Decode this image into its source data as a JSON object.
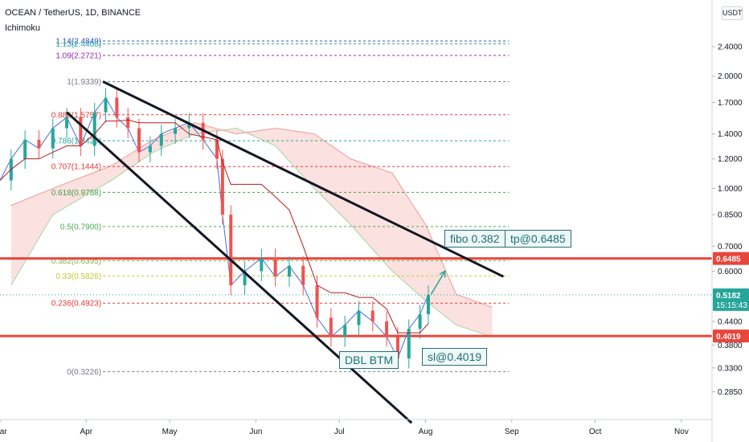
{
  "header": {
    "title": "OCEAN / TetherUS, 1D, BINANCE",
    "indicator": "Ichimoku",
    "currency": "USDT"
  },
  "chart_data": {
    "type": "line",
    "title": "OCEAN / TetherUS, 1D, BINANCE",
    "xlabel": "",
    "ylabel": "",
    "scale": "log",
    "ylim": [
      0.24,
      3.2
    ],
    "x_ticks": [
      "Mar",
      "Apr",
      "May",
      "Jun",
      "Jul",
      "Aug",
      "Sep",
      "Oct",
      "Nov"
    ],
    "y_ticks": [
      2.4,
      2.0,
      1.7,
      1.4,
      1.2,
      1.0,
      0.85,
      0.7,
      0.6,
      0.44,
      0.38,
      0.33,
      0.285
    ],
    "y_tick_labels": [
      "2.4000",
      "2.0000",
      "1.7000",
      "1.4000",
      "1.2000",
      "1.0000",
      "0.8500",
      "0.7000",
      "0.6000",
      "0.4400",
      "0.3800",
      "0.3300",
      "0.2850"
    ],
    "price_badges": [
      {
        "label": "0.6485",
        "color": "#e8463c"
      },
      {
        "label": "0.5182",
        "sub": "15:15:43",
        "color": "#26a69a"
      },
      {
        "label": "0.4019",
        "color": "#e8463c"
      }
    ],
    "horizontal_levels": [
      {
        "value": 0.6485,
        "color": "#e8463c"
      },
      {
        "value": 0.4019,
        "color": "#e8463c"
      }
    ],
    "fib_levels": [
      {
        "ratio_label": "1.14(2.4849)",
        "value": 2.4849,
        "color": "#3c4bc8"
      },
      {
        "ratio_label": "1.13(2.4408)",
        "value": 2.4408,
        "color": "#26a69a"
      },
      {
        "ratio_label": "1.09(2.2721)",
        "value": 2.2721,
        "color": "#9c27b0"
      },
      {
        "ratio_label": "1(1.9339)",
        "value": 1.9339,
        "color": "#787b86"
      },
      {
        "ratio_label": "0.886(1.5757)",
        "value": 1.5757,
        "color": "#e53935"
      },
      {
        "ratio_label": "0.786(1.3420)",
        "value": 1.342,
        "color": "#26a69a"
      },
      {
        "ratio_label": "0.707(1.1444)",
        "value": 1.1444,
        "color": "#e53935"
      },
      {
        "ratio_label": "0.618(0.9758)",
        "value": 0.9758,
        "color": "#43a047"
      },
      {
        "ratio_label": "0.5(0.7900)",
        "value": 0.79,
        "color": "#4caf50"
      },
      {
        "ratio_label": "0.382(0.6395)",
        "value": 0.6395,
        "color": "#7cb342"
      },
      {
        "ratio_label": "0.33(0.5826)",
        "value": 0.5826,
        "color": "#c0ca33"
      },
      {
        "ratio_label": "0.236(0.4923)",
        "value": 0.4923,
        "color": "#e53935"
      },
      {
        "ratio_label": "0(0.3226)",
        "value": 0.3226,
        "color": "#787b86"
      }
    ],
    "annotations": [
      {
        "text": "fibo 0.382"
      },
      {
        "text": "tp@0.6485"
      },
      {
        "text": "DBL BTM"
      },
      {
        "text": "sl@0.4019"
      }
    ],
    "price_series": [
      {
        "date": "2021-03-01",
        "close": 1.05
      },
      {
        "date": "2021-03-05",
        "close": 1.2
      },
      {
        "date": "2021-03-10",
        "close": 1.35
      },
      {
        "date": "2021-03-15",
        "close": 1.28
      },
      {
        "date": "2021-03-20",
        "close": 1.45
      },
      {
        "date": "2021-03-25",
        "close": 1.55
      },
      {
        "date": "2021-03-30",
        "close": 1.3
      },
      {
        "date": "2021-04-04",
        "close": 1.6
      },
      {
        "date": "2021-04-08",
        "close": 1.75
      },
      {
        "date": "2021-04-12",
        "close": 1.55
      },
      {
        "date": "2021-04-16",
        "close": 1.45
      },
      {
        "date": "2021-04-20",
        "close": 1.25
      },
      {
        "date": "2021-04-24",
        "close": 1.3
      },
      {
        "date": "2021-04-28",
        "close": 1.4
      },
      {
        "date": "2021-05-03",
        "close": 1.45
      },
      {
        "date": "2021-05-08",
        "close": 1.5
      },
      {
        "date": "2021-05-13",
        "close": 1.35
      },
      {
        "date": "2021-05-18",
        "close": 1.2
      },
      {
        "date": "2021-05-20",
        "close": 0.85
      },
      {
        "date": "2021-05-23",
        "close": 0.55
      },
      {
        "date": "2021-05-28",
        "close": 0.6
      },
      {
        "date": "2021-06-03",
        "close": 0.65
      },
      {
        "date": "2021-06-08",
        "close": 0.58
      },
      {
        "date": "2021-06-13",
        "close": 0.62
      },
      {
        "date": "2021-06-18",
        "close": 0.55
      },
      {
        "date": "2021-06-23",
        "close": 0.45
      },
      {
        "date": "2021-06-28",
        "close": 0.4
      },
      {
        "date": "2021-07-03",
        "close": 0.43
      },
      {
        "date": "2021-07-08",
        "close": 0.47
      },
      {
        "date": "2021-07-13",
        "close": 0.44
      },
      {
        "date": "2021-07-18",
        "close": 0.4
      },
      {
        "date": "2021-07-22",
        "close": 0.35
      },
      {
        "date": "2021-07-26",
        "close": 0.42
      },
      {
        "date": "2021-07-30",
        "close": 0.46
      },
      {
        "date": "2021-08-02",
        "close": 0.5182
      }
    ],
    "trendlines": [
      {
        "from": {
          "date": "2021-04-07",
          "value": 1.9339
        },
        "to": {
          "date": "2021-08-29",
          "value": 0.58
        }
      },
      {
        "from": {
          "date": "2021-03-25",
          "value": 1.6
        },
        "to": {
          "date": "2021-07-27",
          "value": 0.235
        }
      }
    ],
    "arrow": {
      "from": {
        "date": "2021-08-03",
        "value": 0.52
      },
      "to": {
        "date": "2021-08-08",
        "value": 0.6
      }
    },
    "ichimoku_cloud": [
      {
        "date": "2021-03-05",
        "span_a": 0.55,
        "span_b": 0.9
      },
      {
        "date": "2021-03-20",
        "span_a": 0.85,
        "span_b": 1.0
      },
      {
        "date": "2021-04-10",
        "span_a": 1.05,
        "span_b": 1.15
      },
      {
        "date": "2021-04-25",
        "span_a": 1.25,
        "span_b": 1.35
      },
      {
        "date": "2021-05-10",
        "span_a": 1.4,
        "span_b": 1.5
      },
      {
        "date": "2021-05-25",
        "span_a": 1.45,
        "span_b": 1.4
      },
      {
        "date": "2021-06-08",
        "span_a": 1.3,
        "span_b": 1.45
      },
      {
        "date": "2021-06-22",
        "span_a": 1.0,
        "span_b": 1.4
      },
      {
        "date": "2021-07-05",
        "span_a": 0.8,
        "span_b": 1.2
      },
      {
        "date": "2021-07-20",
        "span_a": 0.6,
        "span_b": 1.1
      },
      {
        "date": "2021-08-01",
        "span_a": 0.5,
        "span_b": 0.8
      },
      {
        "date": "2021-08-12",
        "span_a": 0.43,
        "span_b": 0.52
      },
      {
        "date": "2021-08-25",
        "span_a": 0.4,
        "span_b": 0.48
      }
    ],
    "colors": {
      "up": "#26a69a",
      "down": "#ef5350",
      "lagging_line": "#4c6ddb",
      "base_line": "#b71c1c",
      "cloud_bear": "#f8c9c4",
      "cloud_bull": "#c8e6c9"
    }
  }
}
